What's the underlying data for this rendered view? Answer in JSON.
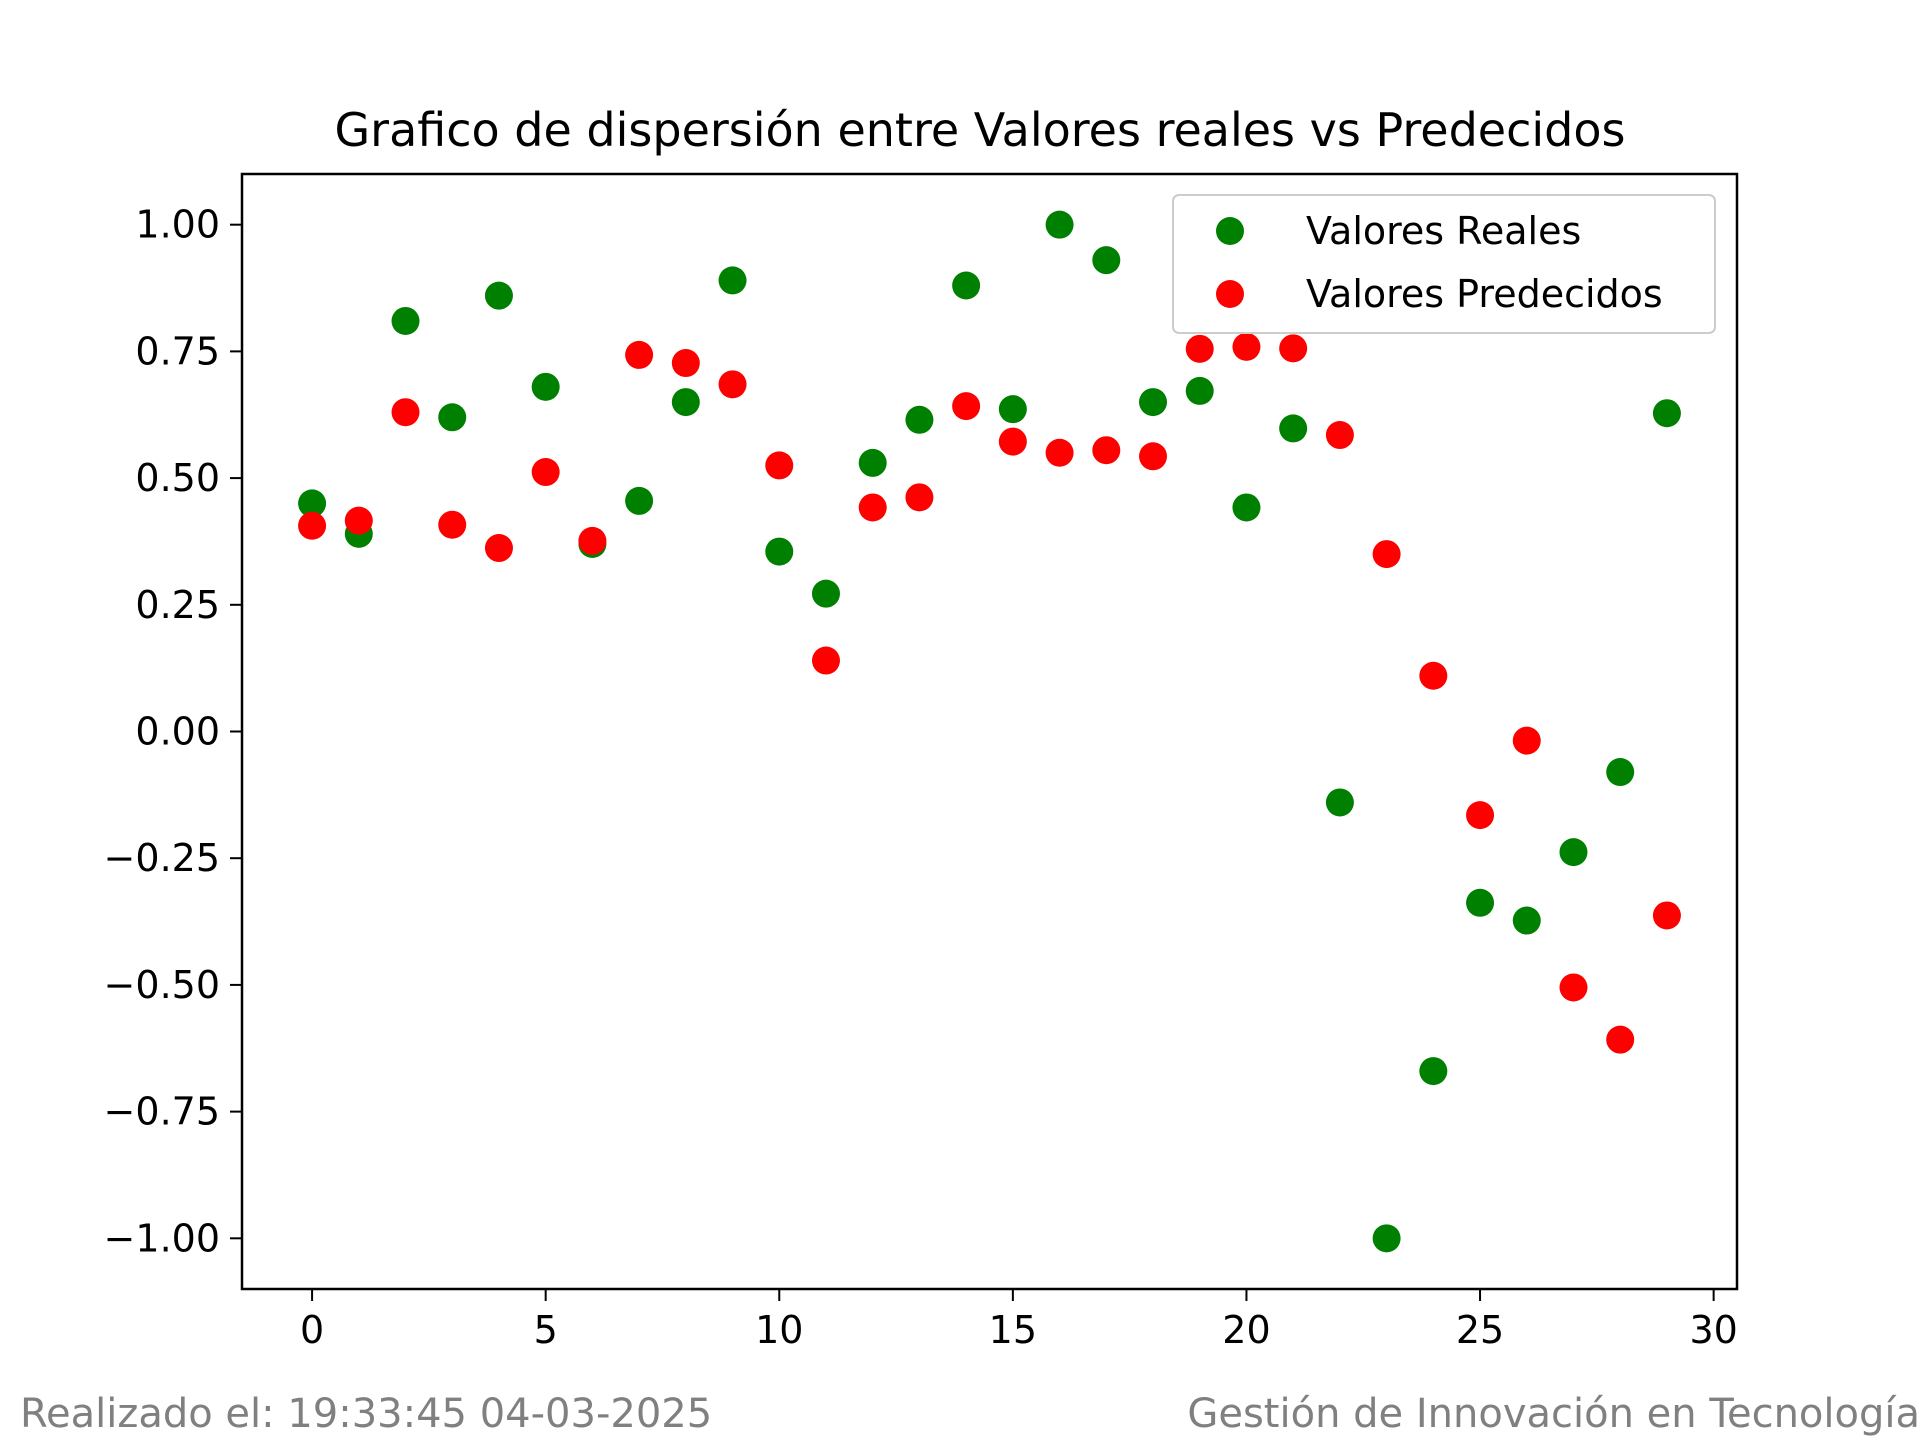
{
  "chart_data": {
    "type": "scatter",
    "title": "Grafico de dispersión entre Valores reales vs Predecidos",
    "xlabel": "",
    "ylabel": "",
    "xlim": [
      -1.5,
      30.5
    ],
    "ylim": [
      -1.1,
      1.1
    ],
    "xticks": [
      0,
      5,
      10,
      15,
      20,
      25,
      30
    ],
    "xtick_labels": [
      "0",
      "5",
      "10",
      "15",
      "20",
      "25",
      "30"
    ],
    "yticks": [
      1.0,
      0.75,
      0.5,
      0.25,
      0.0,
      -0.25,
      -0.5,
      -0.75,
      -1.0
    ],
    "ytick_labels": [
      "1.00",
      "0.75",
      "0.50",
      "0.25",
      "0.00",
      "−0.25",
      "−0.50",
      "−0.75",
      "−1.00"
    ],
    "grid": false,
    "legend_position": "top-right",
    "series": [
      {
        "name": "Valores Reales",
        "color": "#008000",
        "x": [
          0,
          1,
          2,
          3,
          4,
          5,
          6,
          7,
          8,
          9,
          10,
          11,
          12,
          13,
          14,
          15,
          16,
          17,
          18,
          19,
          20,
          21,
          22,
          23,
          24,
          25,
          26,
          27,
          28,
          29
        ],
        "y": [
          0.45,
          0.39,
          0.81,
          0.62,
          0.86,
          0.68,
          0.37,
          0.455,
          0.65,
          0.89,
          0.355,
          0.272,
          0.53,
          0.615,
          0.88,
          0.636,
          1.0,
          0.93,
          0.65,
          0.672,
          0.442,
          0.598,
          -0.14,
          -1.0,
          -0.67,
          -0.338,
          -0.373,
          -0.238,
          -0.08,
          0.628
        ]
      },
      {
        "name": "Valores Predecidos",
        "color": "#ff0000",
        "x": [
          0,
          1,
          2,
          3,
          4,
          5,
          6,
          7,
          8,
          9,
          10,
          11,
          12,
          13,
          14,
          15,
          16,
          17,
          18,
          19,
          20,
          21,
          22,
          23,
          24,
          25,
          26,
          27,
          28,
          29
        ],
        "y": [
          0.406,
          0.416,
          0.63,
          0.408,
          0.362,
          0.512,
          0.376,
          0.743,
          0.727,
          0.685,
          0.525,
          0.14,
          0.442,
          0.462,
          0.642,
          0.572,
          0.55,
          0.555,
          0.543,
          0.755,
          0.759,
          0.756,
          0.585,
          0.35,
          0.11,
          -0.165,
          -0.018,
          -0.505,
          -0.608,
          -0.363
        ]
      }
    ]
  },
  "footer": {
    "left": "Realizado el: 19:33:45 04-03-2025",
    "right": "Gestión de Innovación en Tecnología"
  }
}
